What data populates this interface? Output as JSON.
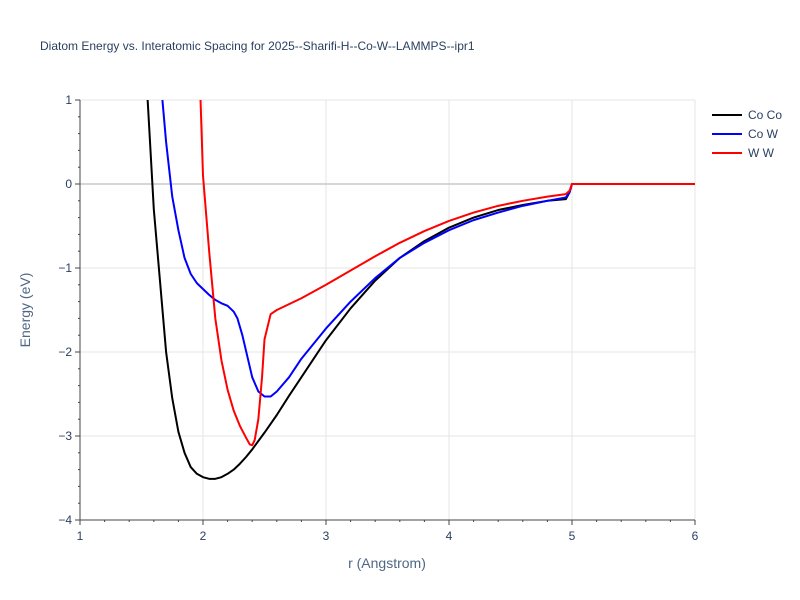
{
  "chart_data": {
    "type": "line",
    "title": "Diatom Energy vs. Interatomic Spacing for 2025--Sharifi-H--Co-W--LAMMPS--ipr1",
    "xlabel": "r (Angstrom)",
    "ylabel": "Energy (eV)",
    "xlim": [
      1,
      6
    ],
    "ylim": [
      -4,
      1
    ],
    "xticks": [
      1,
      2,
      3,
      4,
      5,
      6
    ],
    "yticks": [
      1,
      0,
      -1,
      -2,
      -3,
      -4
    ],
    "xtick_labels": [
      "1",
      "2",
      "3",
      "4",
      "5",
      "6"
    ],
    "ytick_labels": [
      "1",
      "0",
      "−1",
      "−2",
      "−3",
      "−4"
    ],
    "grid": true,
    "legend_position": "top-right",
    "series": [
      {
        "name": "Co Co",
        "color": "#000000",
        "x": [
          1.55,
          1.6,
          1.65,
          1.7,
          1.75,
          1.8,
          1.85,
          1.9,
          1.95,
          2.0,
          2.05,
          2.1,
          2.15,
          2.2,
          2.25,
          2.3,
          2.35,
          2.4,
          2.5,
          2.6,
          2.7,
          2.8,
          2.9,
          3.0,
          3.2,
          3.4,
          3.6,
          3.8,
          4.0,
          4.2,
          4.4,
          4.6,
          4.8,
          4.95,
          4.98,
          5.0,
          5.5,
          6.0
        ],
        "y": [
          1.0,
          -0.3,
          -1.15,
          -2.0,
          -2.55,
          -2.95,
          -3.2,
          -3.37,
          -3.45,
          -3.49,
          -3.51,
          -3.51,
          -3.49,
          -3.45,
          -3.4,
          -3.33,
          -3.25,
          -3.16,
          -2.96,
          -2.75,
          -2.52,
          -2.3,
          -2.08,
          -1.86,
          -1.48,
          -1.15,
          -0.88,
          -0.68,
          -0.52,
          -0.4,
          -0.31,
          -0.25,
          -0.2,
          -0.18,
          -0.1,
          0.0,
          0.0,
          0.0
        ]
      },
      {
        "name": "Co W",
        "color": "#0000ff",
        "x": [
          1.67,
          1.7,
          1.75,
          1.8,
          1.85,
          1.9,
          1.95,
          2.0,
          2.05,
          2.1,
          2.15,
          2.2,
          2.25,
          2.28,
          2.32,
          2.36,
          2.4,
          2.45,
          2.5,
          2.55,
          2.6,
          2.7,
          2.8,
          3.0,
          3.2,
          3.4,
          3.6,
          3.8,
          4.0,
          4.2,
          4.4,
          4.6,
          4.8,
          4.95,
          4.98,
          5.0,
          5.5,
          6.0
        ],
        "y": [
          1.0,
          0.5,
          -0.15,
          -0.55,
          -0.88,
          -1.07,
          -1.18,
          -1.25,
          -1.32,
          -1.38,
          -1.42,
          -1.45,
          -1.52,
          -1.6,
          -1.8,
          -2.05,
          -2.3,
          -2.47,
          -2.53,
          -2.53,
          -2.47,
          -2.3,
          -2.08,
          -1.72,
          -1.4,
          -1.12,
          -0.88,
          -0.7,
          -0.55,
          -0.43,
          -0.34,
          -0.26,
          -0.2,
          -0.16,
          -0.1,
          0.0,
          0.0,
          0.0
        ]
      },
      {
        "name": "W W",
        "color": "#ff0000",
        "x": [
          1.98,
          2.0,
          2.05,
          2.1,
          2.15,
          2.2,
          2.25,
          2.3,
          2.35,
          2.38,
          2.4,
          2.42,
          2.45,
          2.48,
          2.5,
          2.55,
          2.6,
          2.7,
          2.8,
          2.9,
          3.0,
          3.2,
          3.4,
          3.6,
          3.8,
          4.0,
          4.2,
          4.4,
          4.6,
          4.8,
          4.95,
          4.98,
          5.0,
          5.5,
          6.0
        ],
        "y": [
          1.0,
          0.1,
          -0.8,
          -1.6,
          -2.1,
          -2.45,
          -2.7,
          -2.88,
          -3.02,
          -3.1,
          -3.11,
          -3.05,
          -2.8,
          -2.3,
          -1.85,
          -1.55,
          -1.5,
          -1.43,
          -1.36,
          -1.28,
          -1.2,
          -1.03,
          -0.86,
          -0.7,
          -0.56,
          -0.44,
          -0.34,
          -0.26,
          -0.2,
          -0.15,
          -0.12,
          -0.08,
          0.0,
          0.0,
          0.0
        ]
      }
    ]
  }
}
